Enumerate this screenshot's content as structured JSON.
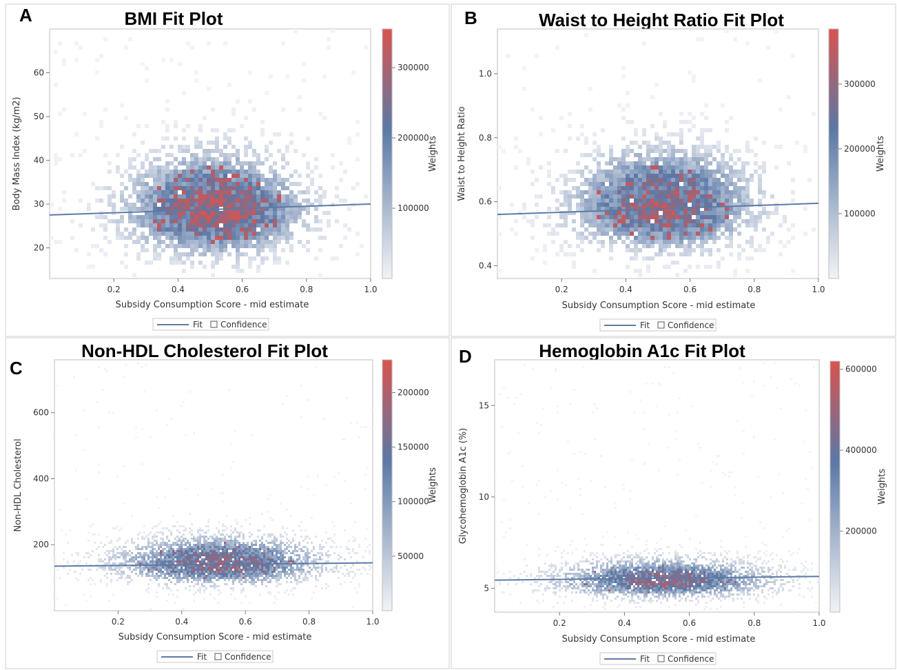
{
  "colors": {
    "fit_line": "#5b7aa6",
    "heat_low": "#f2f3f6",
    "heat_mid": "#5a78a6",
    "heat_high": "#d9534f",
    "frame": "#bdbdbd"
  },
  "legend": {
    "fit": "Fit",
    "confidence": "Confidence"
  },
  "chart_data": [
    {
      "panel": "A",
      "type": "heatmap",
      "title": "BMI Fit Plot",
      "xlabel": "Subsidy Consumption Score - mid estimate",
      "ylabel": "Body Mass Index (kg/m2)",
      "colorbar_label": "Weights",
      "xlim": [
        0,
        1.0
      ],
      "ylim": [
        13,
        70
      ],
      "xticks": [
        "0.2",
        "0.4",
        "0.6",
        "0.8",
        "1.0"
      ],
      "yticks": [
        "20",
        "30",
        "40",
        "50",
        "60"
      ],
      "colorbar_ticks": [
        "100000",
        "200000",
        "300000"
      ],
      "colorbar_range": [
        0,
        355000
      ],
      "fit_line": {
        "x": [
          0,
          1.0
        ],
        "y": [
          27.5,
          30.0
        ]
      },
      "density_center": [
        0.52,
        28
      ],
      "density_spread": [
        0.17,
        6
      ]
    },
    {
      "panel": "B",
      "type": "heatmap",
      "title": "Waist to Height Ratio Fit Plot",
      "xlabel": "Subsidy Consumption Score - mid estimate",
      "ylabel": "Waist to Height Ratio",
      "colorbar_label": "Weights",
      "xlim": [
        0,
        1.0
      ],
      "ylim": [
        0.36,
        1.14
      ],
      "xticks": [
        "0.2",
        "0.4",
        "0.6",
        "0.8",
        "1.0"
      ],
      "yticks": [
        "0.4",
        "0.6",
        "0.8",
        "1.0"
      ],
      "colorbar_ticks": [
        "100000",
        "200000",
        "300000"
      ],
      "colorbar_range": [
        0,
        385000
      ],
      "fit_line": {
        "x": [
          0,
          1.0
        ],
        "y": [
          0.56,
          0.595
        ]
      },
      "density_center": [
        0.52,
        0.58
      ],
      "density_spread": [
        0.17,
        0.08
      ]
    },
    {
      "panel": "C",
      "type": "heatmap",
      "title": "Non-HDL Cholesterol Fit Plot",
      "xlabel": "Subsidy Consumption Score - mid estimate",
      "ylabel": "Non-HDL Cholesterol",
      "colorbar_label": "Weights",
      "xlim": [
        0,
        1.0
      ],
      "ylim": [
        0,
        760
      ],
      "xticks": [
        "0.2",
        "0.4",
        "0.6",
        "0.8",
        "1.0"
      ],
      "yticks": [
        "200",
        "400",
        "600"
      ],
      "colorbar_ticks": [
        "50000",
        "100000",
        "150000",
        "200000"
      ],
      "colorbar_range": [
        0,
        230000
      ],
      "fit_line": {
        "x": [
          0,
          1.0
        ],
        "y": [
          135,
          145
        ]
      },
      "density_center": [
        0.52,
        140
      ],
      "density_spread": [
        0.2,
        38
      ]
    },
    {
      "panel": "D",
      "type": "heatmap",
      "title": "Hemoglobin A1c Fit Plot",
      "xlabel": "Subsidy Consumption Score - mid estimate",
      "ylabel": "Glycohemoglobin A1c (%)",
      "colorbar_label": "Weights",
      "xlim": [
        0,
        1.0
      ],
      "ylim": [
        3.7,
        17.5
      ],
      "xticks": [
        "0.2",
        "0.4",
        "0.6",
        "0.8",
        "1.0"
      ],
      "yticks": [
        "5",
        "10",
        "15"
      ],
      "colorbar_ticks": [
        "200000",
        "400000",
        "600000"
      ],
      "colorbar_range": [
        0,
        620000
      ],
      "fit_line": {
        "x": [
          0,
          1.0
        ],
        "y": [
          5.45,
          5.65
        ]
      },
      "density_center": [
        0.52,
        5.4
      ],
      "density_spread": [
        0.2,
        0.55
      ]
    }
  ]
}
